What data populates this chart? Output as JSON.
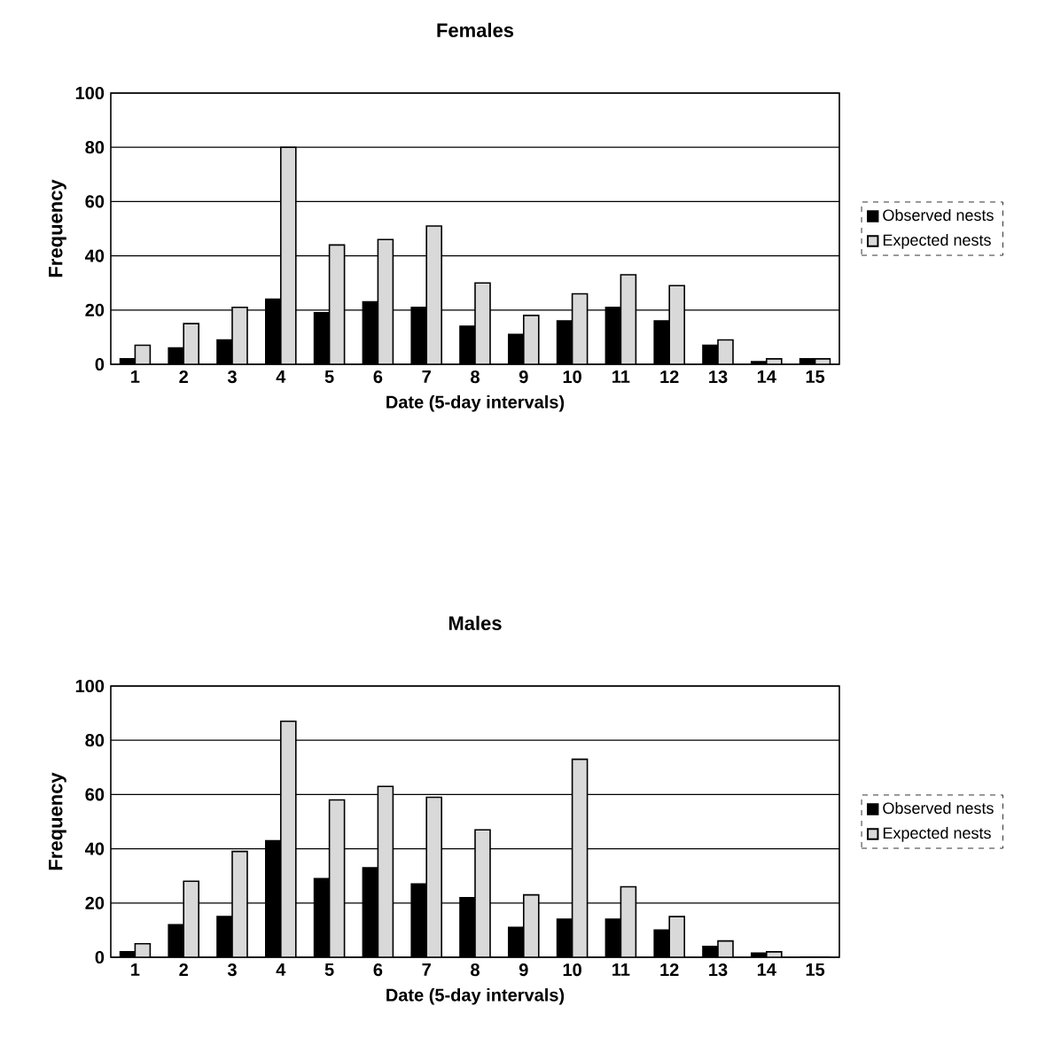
{
  "chart_data": [
    {
      "type": "bar",
      "title": "Females",
      "xlabel": "Date (5-day intervals)",
      "ylabel": "Frequency",
      "categories": [
        "1",
        "2",
        "3",
        "4",
        "5",
        "6",
        "7",
        "8",
        "9",
        "10",
        "11",
        "12",
        "13",
        "14",
        "15"
      ],
      "ylim": [
        0,
        100
      ],
      "yticks": [
        0,
        20,
        40,
        60,
        80,
        100
      ],
      "grid": "y",
      "legend": "right",
      "series": [
        {
          "name": "Observed nests",
          "color": "#000000",
          "values": [
            2,
            6,
            9,
            24,
            19,
            23,
            21,
            14,
            11,
            16,
            21,
            16,
            7,
            1,
            2
          ]
        },
        {
          "name": "Expected nests",
          "color": "#d9d9d9",
          "values": [
            7,
            15,
            21,
            80,
            44,
            46,
            51,
            30,
            18,
            26,
            33,
            29,
            9,
            2,
            2
          ]
        }
      ]
    },
    {
      "type": "bar",
      "title": "Males",
      "xlabel": "Date (5-day intervals)",
      "ylabel": "Frequency",
      "categories": [
        "1",
        "2",
        "3",
        "4",
        "5",
        "6",
        "7",
        "8",
        "9",
        "10",
        "11",
        "12",
        "13",
        "14",
        "15"
      ],
      "ylim": [
        0,
        100
      ],
      "yticks": [
        0,
        20,
        40,
        60,
        80,
        100
      ],
      "grid": "y",
      "legend": "right",
      "series": [
        {
          "name": "Observed nests",
          "color": "#000000",
          "values": [
            2,
            12,
            15,
            43,
            29,
            33,
            27,
            22,
            11,
            14,
            14,
            10,
            4,
            1.5,
            0
          ]
        },
        {
          "name": "Expected nests",
          "color": "#d9d9d9",
          "values": [
            5,
            28,
            39,
            87,
            58,
            63,
            59,
            47,
            23,
            73,
            26,
            15,
            6,
            2,
            0
          ]
        }
      ]
    }
  ]
}
